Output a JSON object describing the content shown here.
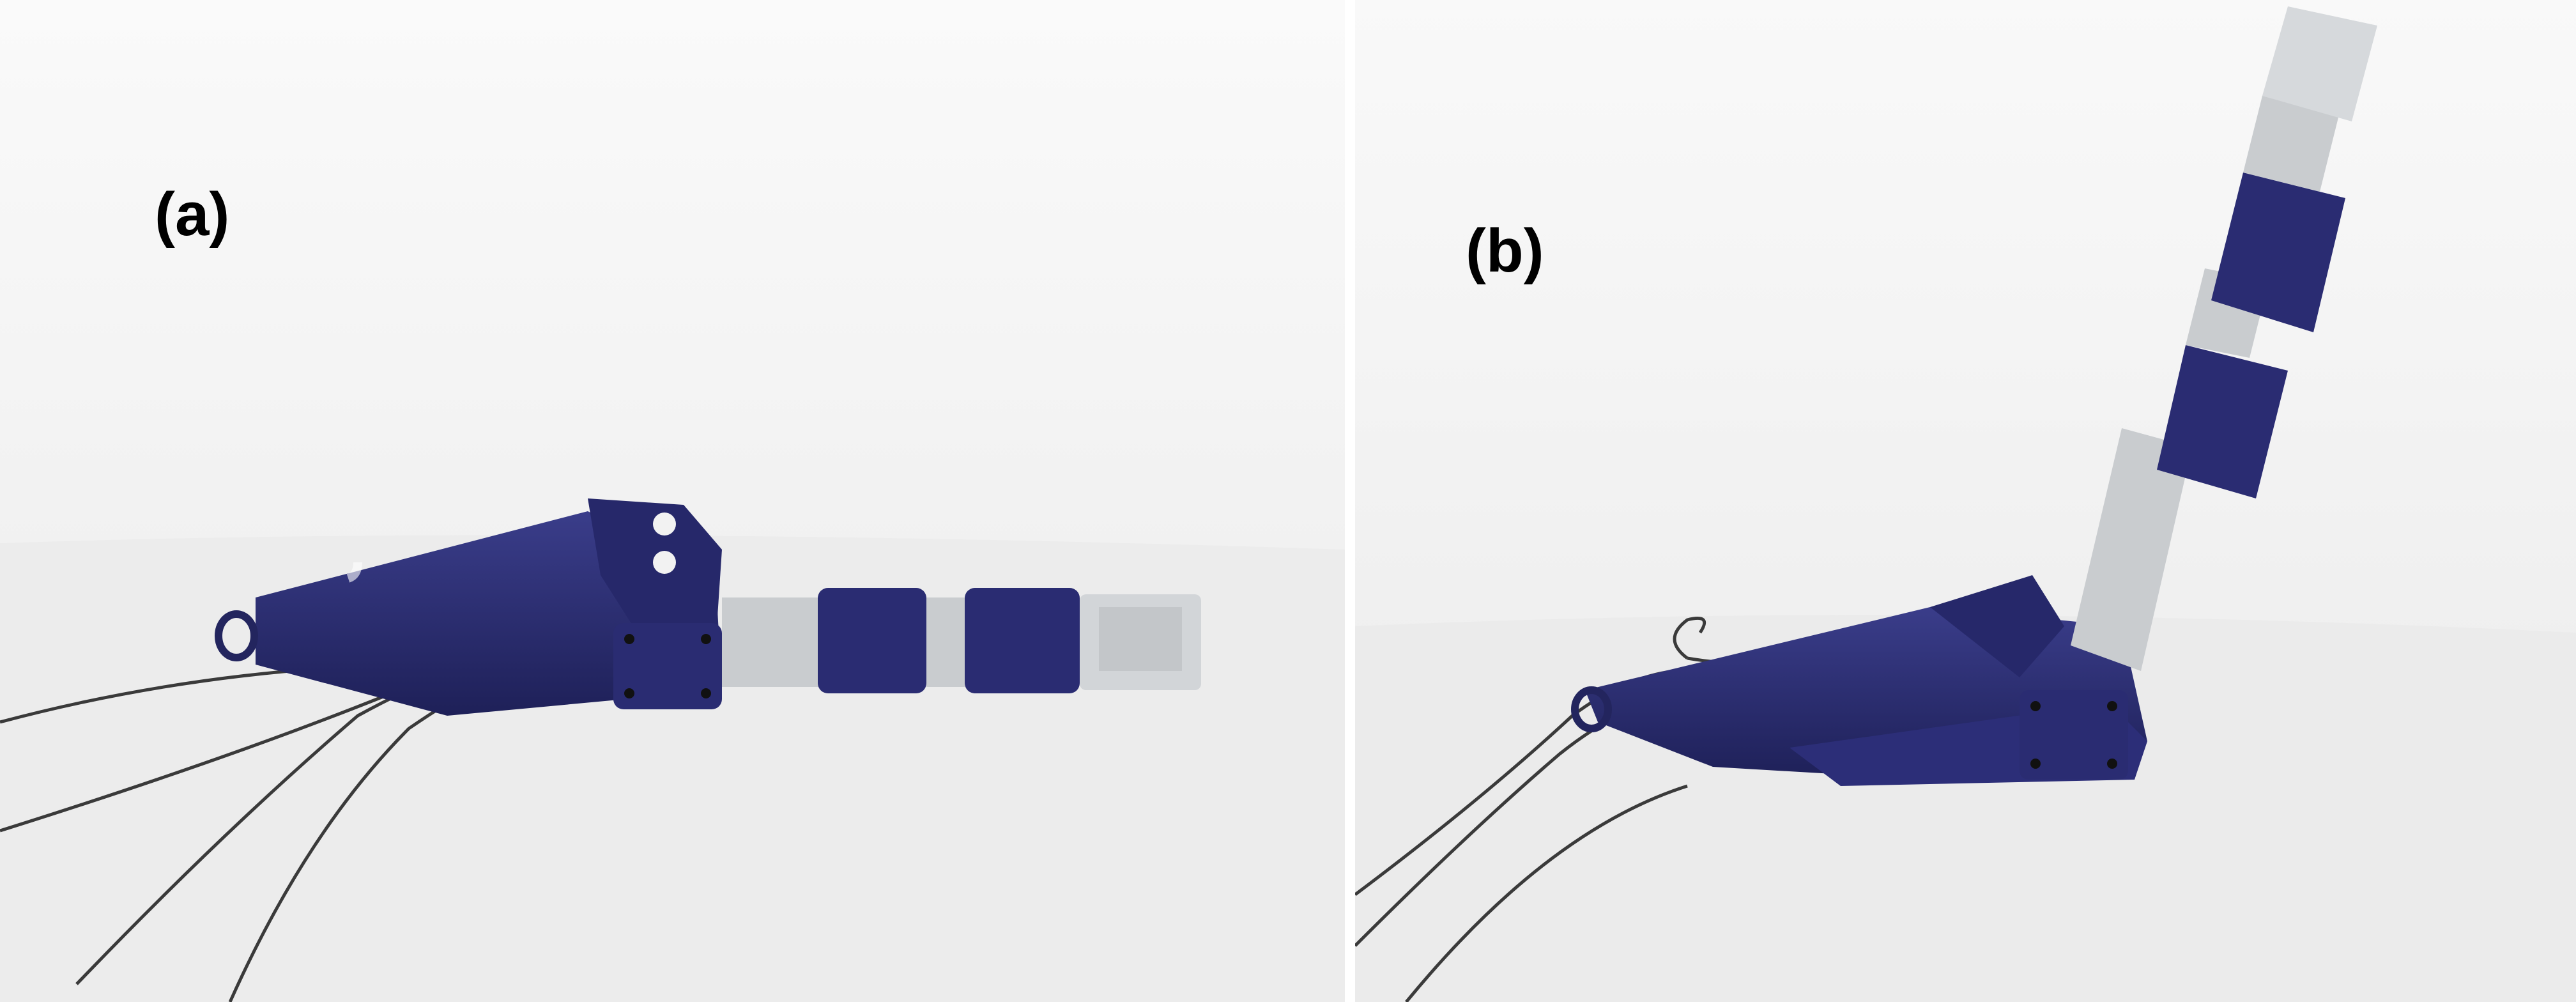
{
  "figure": {
    "panels": [
      {
        "label": "(a)",
        "state": "finger extended"
      },
      {
        "label": "(b)",
        "state": "finger flexed"
      }
    ]
  },
  "colors": {
    "hand_body": "#2a2c72",
    "finger_segment": "#c9cccf",
    "background_wall": "#f3f3f3",
    "table_surface": "#ececec",
    "tendon_wire": "#3a3a3a"
  }
}
